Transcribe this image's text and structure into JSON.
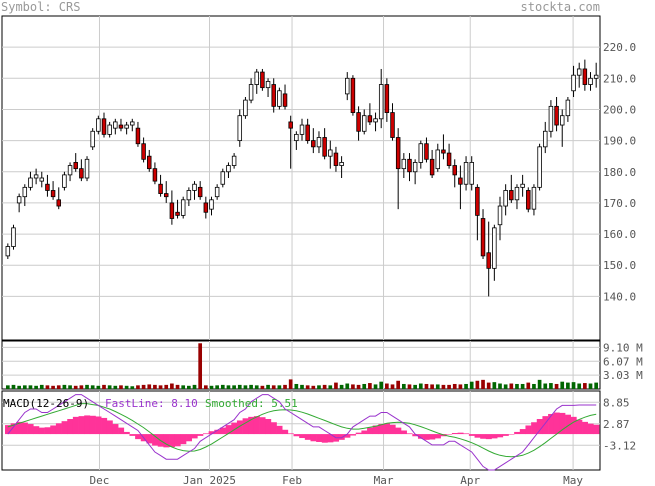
{
  "header": {
    "symbol_label": "Symbol: CRS",
    "brand": "stockta.com"
  },
  "macd_legend": {
    "label": "MACD(12-26-9)",
    "fast": "FastLine: 8.10",
    "smooth": "Smoothed: 5.51"
  },
  "colors": {
    "up": "#ffffff",
    "down": "#cc0000",
    "vol_up": "#006600",
    "vol_down": "#990000",
    "hist": "#ff3399",
    "fast_line": "#9933cc",
    "smooth_line": "#33aa33",
    "grid": "#cccccc",
    "axis_text": "#555555"
  },
  "chart_data": [
    {
      "type": "candlestick",
      "title": "Symbol: CRS",
      "x_labels": [
        "Dec",
        "Jan 2025",
        "Feb",
        "Mar",
        "Apr",
        "May"
      ],
      "y_ticks": [
        140,
        150,
        160,
        170,
        180,
        190,
        200,
        210,
        220
      ],
      "ylim": [
        126,
        230
      ],
      "grid": true,
      "candles": [
        [
          153,
          157,
          152,
          156
        ],
        [
          156,
          163,
          155,
          162
        ],
        [
          170,
          173,
          167,
          172
        ],
        [
          172,
          176,
          169,
          175
        ],
        [
          175,
          180,
          174,
          178
        ],
        [
          178,
          181,
          176,
          179
        ],
        [
          177,
          180,
          175,
          178
        ],
        [
          176,
          179,
          172,
          174
        ],
        [
          174,
          177,
          171,
          172
        ],
        [
          171,
          175,
          168,
          169
        ],
        [
          175,
          180,
          174,
          179
        ],
        [
          179,
          183,
          177,
          182
        ],
        [
          183,
          186,
          180,
          181
        ],
        [
          181,
          184,
          177,
          178
        ],
        [
          178,
          185,
          177,
          184
        ],
        [
          188,
          194,
          187,
          193
        ],
        [
          193,
          198,
          192,
          197
        ],
        [
          197,
          199,
          191,
          192
        ],
        [
          192,
          196,
          191,
          195
        ],
        [
          194,
          197,
          192,
          196
        ],
        [
          195,
          197,
          193,
          194
        ],
        [
          194,
          196,
          192,
          195
        ],
        [
          195,
          197,
          193,
          196
        ],
        [
          194,
          196,
          188,
          189
        ],
        [
          189,
          191,
          183,
          184
        ],
        [
          185,
          187,
          180,
          181
        ],
        [
          181,
          183,
          176,
          177
        ],
        [
          176,
          179,
          172,
          173
        ],
        [
          173,
          177,
          170,
          172
        ],
        [
          170,
          174,
          163,
          165
        ],
        [
          167,
          171,
          165,
          166
        ],
        [
          166,
          172,
          165,
          171
        ],
        [
          171,
          175,
          169,
          174
        ],
        [
          174,
          177,
          171,
          176
        ],
        [
          175,
          177,
          171,
          172
        ],
        [
          170,
          172,
          165,
          167
        ],
        [
          168,
          172,
          166,
          171
        ],
        [
          172,
          176,
          171,
          175
        ],
        [
          176,
          181,
          175,
          180
        ],
        [
          180,
          183,
          178,
          182
        ],
        [
          182,
          186,
          181,
          185
        ],
        [
          190,
          200,
          188,
          198
        ],
        [
          198,
          204,
          197,
          203
        ],
        [
          203,
          210,
          202,
          208
        ],
        [
          208,
          213,
          205,
          212
        ],
        [
          212,
          213,
          206,
          207
        ],
        [
          207,
          210,
          204,
          209
        ],
        [
          208,
          210,
          199,
          201
        ],
        [
          201,
          207,
          200,
          206
        ],
        [
          205,
          208,
          200,
          201
        ],
        [
          196,
          198,
          181,
          194
        ],
        [
          190,
          193,
          187,
          192
        ],
        [
          192,
          197,
          190,
          195
        ],
        [
          195,
          197,
          189,
          190
        ],
        [
          190,
          194,
          186,
          188
        ],
        [
          188,
          193,
          186,
          191
        ],
        [
          191,
          194,
          184,
          185
        ],
        [
          185,
          190,
          181,
          187
        ],
        [
          186,
          188,
          180,
          182
        ],
        [
          182,
          185,
          178,
          183
        ],
        [
          205,
          212,
          203,
          210
        ],
        [
          210,
          211,
          198,
          199
        ],
        [
          199,
          201,
          190,
          193
        ],
        [
          193,
          200,
          192,
          198
        ],
        [
          198,
          202,
          195,
          196
        ],
        [
          196,
          199,
          193,
          197
        ],
        [
          197,
          213,
          194,
          208
        ],
        [
          208,
          210,
          196,
          199
        ],
        [
          199,
          202,
          190,
          191
        ],
        [
          191,
          194,
          168,
          181
        ],
        [
          181,
          186,
          178,
          184
        ],
        [
          184,
          186,
          177,
          180
        ],
        [
          180,
          184,
          176,
          183
        ],
        [
          183,
          190,
          181,
          189
        ],
        [
          189,
          191,
          183,
          184
        ],
        [
          184,
          187,
          178,
          179
        ],
        [
          181,
          189,
          180,
          187
        ],
        [
          187,
          192,
          184,
          186
        ],
        [
          186,
          189,
          181,
          182
        ],
        [
          182,
          184,
          175,
          179
        ],
        [
          178,
          182,
          168,
          176
        ],
        [
          176,
          185,
          174,
          183
        ],
        [
          176,
          185,
          174,
          183
        ],
        [
          175,
          176,
          158,
          166
        ],
        [
          165,
          168,
          152,
          153
        ],
        [
          154,
          164,
          140,
          149
        ],
        [
          149,
          163,
          145,
          162
        ],
        [
          163,
          172,
          158,
          169
        ],
        [
          169,
          176,
          166,
          174
        ],
        [
          174,
          179,
          170,
          171
        ],
        [
          171,
          176,
          168,
          175
        ],
        [
          175,
          179,
          172,
          176
        ],
        [
          174,
          175,
          167,
          168
        ],
        [
          168,
          176,
          166,
          175
        ],
        [
          175,
          189,
          174,
          188
        ],
        [
          188,
          196,
          186,
          193
        ],
        [
          193,
          203,
          191,
          201
        ],
        [
          201,
          204,
          193,
          195
        ],
        [
          195,
          200,
          188,
          198
        ],
        [
          198,
          204,
          196,
          203
        ],
        [
          206,
          214,
          204,
          211
        ],
        [
          211,
          215,
          207,
          213
        ],
        [
          213,
          216,
          206,
          208
        ],
        [
          208,
          212,
          206,
          210
        ],
        [
          210,
          215,
          207,
          211
        ]
      ],
      "volume_ticks": [
        "9.10 M",
        "6.07 M",
        "3.03 M"
      ],
      "volume_max": 10.5,
      "volume": [
        0.8,
        0.9,
        0.7,
        0.8,
        0.8,
        0.7,
        0.9,
        0.8,
        0.7,
        0.8,
        0.9,
        0.8,
        0.7,
        0.8,
        0.9,
        0.8,
        0.7,
        0.9,
        0.8,
        0.7,
        0.8,
        0.7,
        0.6,
        0.8,
        0.9,
        1.0,
        0.9,
        0.8,
        0.9,
        1.2,
        0.9,
        0.8,
        0.7,
        0.9,
        10.0,
        0.8,
        0.7,
        0.8,
        0.9,
        0.8,
        0.8,
        0.9,
        0.8,
        0.9,
        0.8,
        0.7,
        0.9,
        0.8,
        0.8,
        0.9,
        2.1,
        1.1,
        0.9,
        0.8,
        0.7,
        0.8,
        0.9,
        0.8,
        1.4,
        0.9,
        1.2,
        1.0,
        0.9,
        1.1,
        1.3,
        1.0,
        1.6,
        1.2,
        1.0,
        1.8,
        1.1,
        1.0,
        0.9,
        1.2,
        1.1,
        1.0,
        1.0,
        0.9,
        0.9,
        1.1,
        1.0,
        1.1,
        1.6,
        1.8,
        2.0,
        1.4,
        1.5,
        1.2,
        1.0,
        1.2,
        1.1,
        1.1,
        1.4,
        1.1,
        2.0,
        1.2,
        1.3,
        1.1,
        1.6,
        1.4,
        1.5,
        1.2,
        1.3,
        1.2,
        1.4
      ],
      "macd_ticks": [
        "8.85",
        "2.87",
        "-3.12"
      ],
      "macd_ylim": [
        -10,
        12
      ],
      "macd_hist": [
        2.5,
        3.0,
        3.4,
        3.2,
        2.8,
        2.2,
        1.8,
        1.9,
        2.4,
        3.0,
        3.6,
        4.2,
        4.8,
        5.0,
        5.2,
        5.1,
        4.9,
        4.5,
        3.8,
        2.8,
        1.8,
        0.6,
        -0.5,
        -1.4,
        -2.0,
        -2.6,
        -3.2,
        -3.5,
        -3.7,
        -3.6,
        -3.4,
        -2.8,
        -2.0,
        -1.2,
        -0.5,
        0.2,
        0.8,
        1.2,
        1.8,
        2.5,
        3.2,
        3.8,
        4.4,
        4.8,
        5.0,
        4.7,
        4.2,
        3.3,
        2.3,
        1.2,
        0.2,
        -0.6,
        -1.1,
        -1.6,
        -2.0,
        -2.2,
        -2.4,
        -2.3,
        -2.1,
        -1.6,
        -1.0,
        -0.4,
        0.4,
        1.0,
        1.8,
        2.4,
        2.8,
        3.0,
        2.6,
        1.8,
        1.0,
        0.2,
        -0.6,
        -1.3,
        -1.6,
        -1.5,
        -1.2,
        -0.6,
        -0.1,
        0.3,
        0.4,
        0.2,
        -0.5,
        -1.0,
        -1.3,
        -1.4,
        -1.2,
        -0.9,
        -0.5,
        0.0,
        0.6,
        1.4,
        2.4,
        3.3,
        4.2,
        5.0,
        5.6,
        6.0,
        5.9,
        5.4,
        4.8,
        4.0,
        3.4,
        2.9,
        2.6
      ],
      "macd_fast": [
        0,
        2,
        4,
        6,
        7,
        7,
        6,
        6,
        7,
        8,
        9,
        10,
        11,
        11,
        10,
        9,
        8,
        7,
        6,
        5,
        4,
        3,
        2,
        1,
        -1,
        -3,
        -5,
        -6,
        -7,
        -7,
        -7,
        -6,
        -5,
        -4,
        -2,
        -1,
        0,
        1,
        2,
        3,
        4,
        6,
        7,
        9,
        10,
        11,
        11,
        10,
        9,
        7,
        6,
        5,
        4,
        3,
        2,
        2,
        1,
        0,
        -1,
        -1,
        0,
        2,
        3,
        4,
        5,
        5,
        6,
        6,
        5,
        4,
        3,
        2,
        0,
        -1,
        -2,
        -3,
        -3,
        -3,
        -2,
        -2,
        -3,
        -4,
        -5,
        -7,
        -9,
        -10,
        -10,
        -9,
        -8,
        -7,
        -6,
        -5,
        -3,
        -1,
        1,
        3,
        5,
        7,
        8,
        8,
        8,
        8.1,
        8.1,
        8.1,
        8.1
      ],
      "macd_smooth": [
        2,
        2.5,
        3,
        3.5,
        4,
        4.5,
        5,
        5.5,
        6,
        6.5,
        7,
        7.5,
        8,
        8.5,
        8.5,
        8.2,
        8,
        7.5,
        7,
        6.3,
        5.5,
        4.7,
        3.8,
        2.8,
        1.8,
        0.6,
        -0.6,
        -1.8,
        -2.8,
        -3.6,
        -4.2,
        -4.6,
        -4.8,
        -4.7,
        -4.3,
        -3.6,
        -2.8,
        -1.8,
        -0.8,
        0.2,
        1.2,
        2.2,
        3.1,
        4.0,
        4.8,
        5.5,
        6.1,
        6.5,
        6.7,
        6.8,
        6.7,
        6.5,
        6.1,
        5.6,
        5.0,
        4.4,
        3.8,
        3.2,
        2.6,
        2.0,
        1.6,
        1.4,
        1.4,
        1.6,
        1.9,
        2.2,
        2.6,
        3.0,
        3.2,
        3.3,
        3.2,
        3.0,
        2.6,
        2.1,
        1.5,
        0.9,
        0.3,
        -0.2,
        -0.6,
        -0.9,
        -1.3,
        -1.8,
        -2.4,
        -3.1,
        -3.9,
        -4.7,
        -5.4,
        -5.9,
        -6.2,
        -6.3,
        -6.2,
        -5.9,
        -5.3,
        -4.5,
        -3.5,
        -2.4,
        -1.2,
        0.0,
        1.2,
        2.3,
        3.3,
        4.1,
        4.7,
        5.2,
        5.5
      ]
    }
  ]
}
